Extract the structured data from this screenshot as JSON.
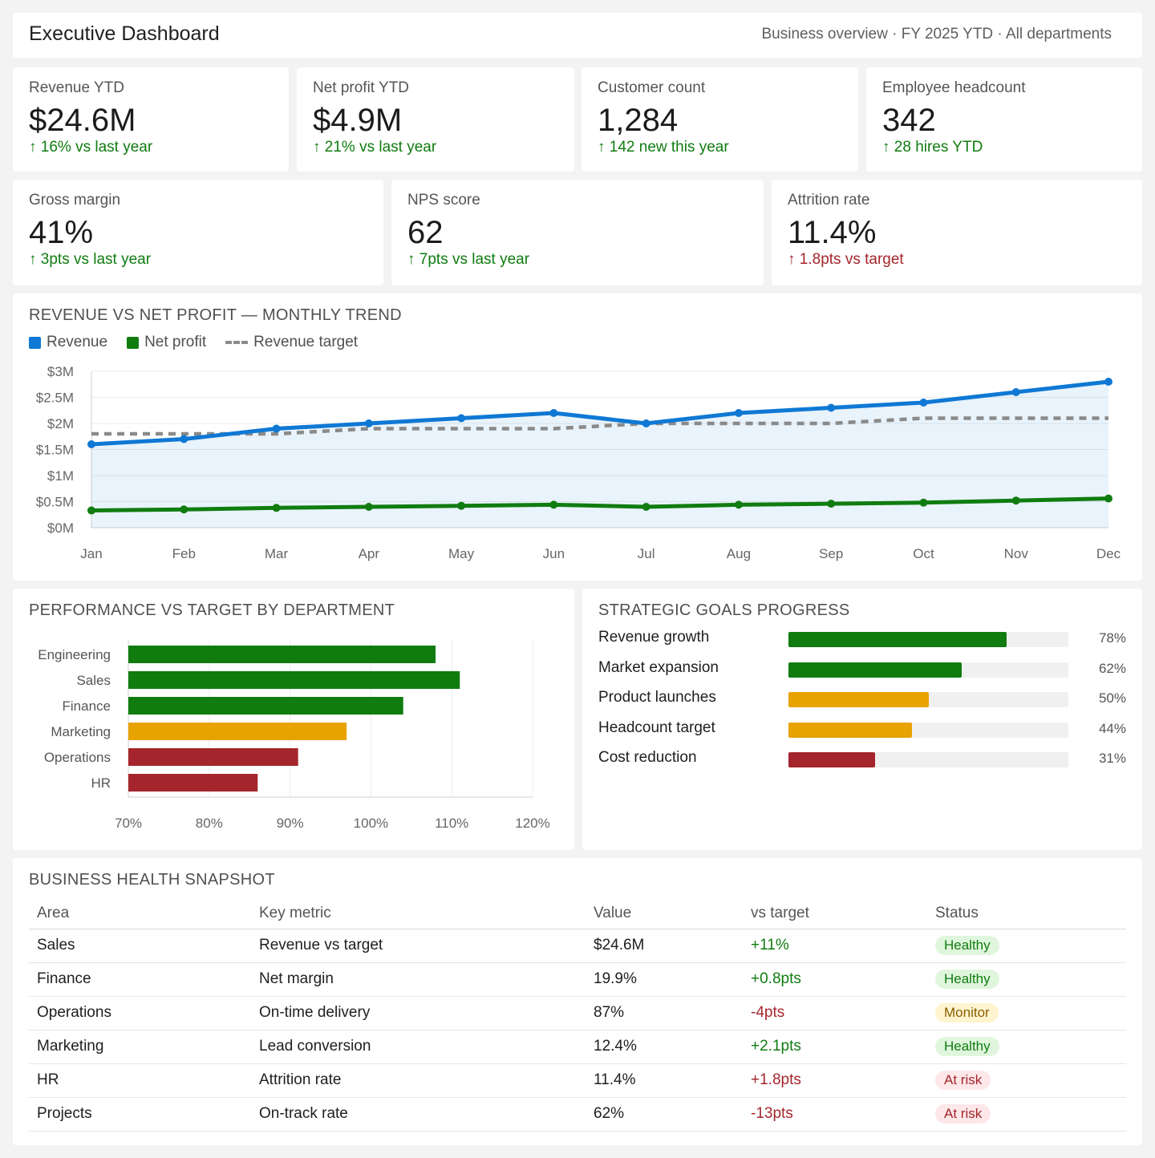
{
  "header": {
    "title": "Executive Dashboard",
    "subtitle": "Business overview · FY 2025 YTD · All departments"
  },
  "kpis_top": [
    {
      "label": "Revenue YTD",
      "value": "$24.6M",
      "delta": "↑ 16% vs last year",
      "trend": "positive"
    },
    {
      "label": "Net profit YTD",
      "value": "$4.9M",
      "delta": "↑ 21% vs last year",
      "trend": "positive"
    },
    {
      "label": "Customer count",
      "value": "1,284",
      "delta": "↑ 142 new this year",
      "trend": "positive"
    },
    {
      "label": "Employee headcount",
      "value": "342",
      "delta": "↑ 28 hires YTD",
      "trend": "positive"
    }
  ],
  "kpis_bottom": [
    {
      "label": "Gross margin",
      "value": "41%",
      "delta": "↑ 3pts vs last year",
      "trend": "positive"
    },
    {
      "label": "NPS score",
      "value": "62",
      "delta": "↑ 7pts vs last year",
      "trend": "positive"
    },
    {
      "label": "Attrition rate",
      "value": "11.4%",
      "delta": "↑ 1.8pts vs target",
      "trend": "negative"
    }
  ],
  "trend_chart": {
    "section_title": "REVENUE VS NET PROFIT — MONTHLY TREND",
    "legend": {
      "revenue": "Revenue",
      "net_profit": "Net profit",
      "target": "Revenue target"
    }
  },
  "dept_chart": {
    "section_title": "PERFORMANCE VS TARGET BY DEPARTMENT"
  },
  "goals": {
    "section_title": "STRATEGIC GOALS PROGRESS",
    "items": [
      {
        "label": "Revenue growth",
        "progress": 0.78,
        "pct": "78%",
        "color": "#107c10"
      },
      {
        "label": "Market expansion",
        "progress": 0.62,
        "pct": "62%",
        "color": "#107c10"
      },
      {
        "label": "Product launches",
        "progress": 0.5,
        "pct": "50%",
        "color": "#e8a202"
      },
      {
        "label": "Headcount target",
        "progress": 0.44,
        "pct": "44%",
        "color": "#e8a202"
      },
      {
        "label": "Cost reduction",
        "progress": 0.31,
        "pct": "31%",
        "color": "#a4262c"
      }
    ]
  },
  "health": {
    "section_title": "BUSINESS HEALTH SNAPSHOT",
    "columns": [
      "Area",
      "Key metric",
      "Value",
      "vs target",
      "Status"
    ],
    "rows": [
      {
        "area": "Sales",
        "metric": "Revenue vs target",
        "value": "$24.6M",
        "vs": "+11%",
        "vs_trend": "positive",
        "status": "Healthy",
        "status_type": "healthy"
      },
      {
        "area": "Finance",
        "metric": "Net margin",
        "value": "19.9%",
        "vs": "+0.8pts",
        "vs_trend": "positive",
        "status": "Healthy",
        "status_type": "healthy"
      },
      {
        "area": "Operations",
        "metric": "On-time delivery",
        "value": "87%",
        "vs": "-4pts",
        "vs_trend": "negative",
        "status": "Monitor",
        "status_type": "monitor"
      },
      {
        "area": "Marketing",
        "metric": "Lead conversion",
        "value": "12.4%",
        "vs": "+2.1pts",
        "vs_trend": "positive",
        "status": "Healthy",
        "status_type": "healthy"
      },
      {
        "area": "HR",
        "metric": "Attrition rate",
        "value": "11.4%",
        "vs": "+1.8pts",
        "vs_trend": "negative",
        "status": "At risk",
        "status_type": "risk"
      },
      {
        "area": "Projects",
        "metric": "On-track rate",
        "value": "62%",
        "vs": "-13pts",
        "vs_trend": "negative",
        "status": "At risk",
        "status_type": "risk"
      }
    ]
  },
  "colors": {
    "revenue": "#0f78d4",
    "net_profit": "#107c10",
    "target": "#8a8a8a",
    "positive": "#107c10",
    "warning": "#e8a202",
    "negative": "#a4262c"
  },
  "chart_data": [
    {
      "type": "line",
      "title": "REVENUE VS NET PROFIT — MONTHLY TREND",
      "categories": [
        "Jan",
        "Feb",
        "Mar",
        "Apr",
        "May",
        "Jun",
        "Jul",
        "Aug",
        "Sep",
        "Oct",
        "Nov",
        "Dec"
      ],
      "series": [
        {
          "name": "Revenue",
          "values": [
            1.6,
            1.7,
            1.9,
            2.0,
            2.1,
            2.2,
            2.0,
            2.2,
            2.3,
            2.4,
            2.6,
            2.8
          ],
          "color": "#0f78d4",
          "area": true
        },
        {
          "name": "Net profit",
          "values": [
            0.33,
            0.35,
            0.38,
            0.4,
            0.42,
            0.44,
            0.4,
            0.44,
            0.46,
            0.48,
            0.52,
            0.56
          ],
          "color": "#107c10"
        },
        {
          "name": "Revenue target",
          "values": [
            1.8,
            1.8,
            1.8,
            1.9,
            1.9,
            1.9,
            2.0,
            2.0,
            2.0,
            2.1,
            2.1,
            2.1
          ],
          "color": "#8a8a8a",
          "dashed": true
        }
      ],
      "yticks": [
        "$0M",
        "$0.5M",
        "$1M",
        "$1.5M",
        "$2M",
        "$2.5M",
        "$3M"
      ],
      "ylim": [
        0,
        3
      ],
      "grid": true,
      "legend": "top-left"
    },
    {
      "type": "bar",
      "orientation": "horizontal",
      "title": "PERFORMANCE VS TARGET BY DEPARTMENT",
      "categories": [
        "Engineering",
        "Sales",
        "Finance",
        "Marketing",
        "Operations",
        "HR"
      ],
      "values": [
        108,
        111,
        104,
        97,
        91,
        86
      ],
      "colors": [
        "#107c10",
        "#107c10",
        "#107c10",
        "#e8a202",
        "#a4262c",
        "#a4262c"
      ],
      "xticks": [
        "70%",
        "80%",
        "90%",
        "100%",
        "110%",
        "120%"
      ],
      "xlim": [
        70,
        120
      ],
      "grid": true
    }
  ]
}
